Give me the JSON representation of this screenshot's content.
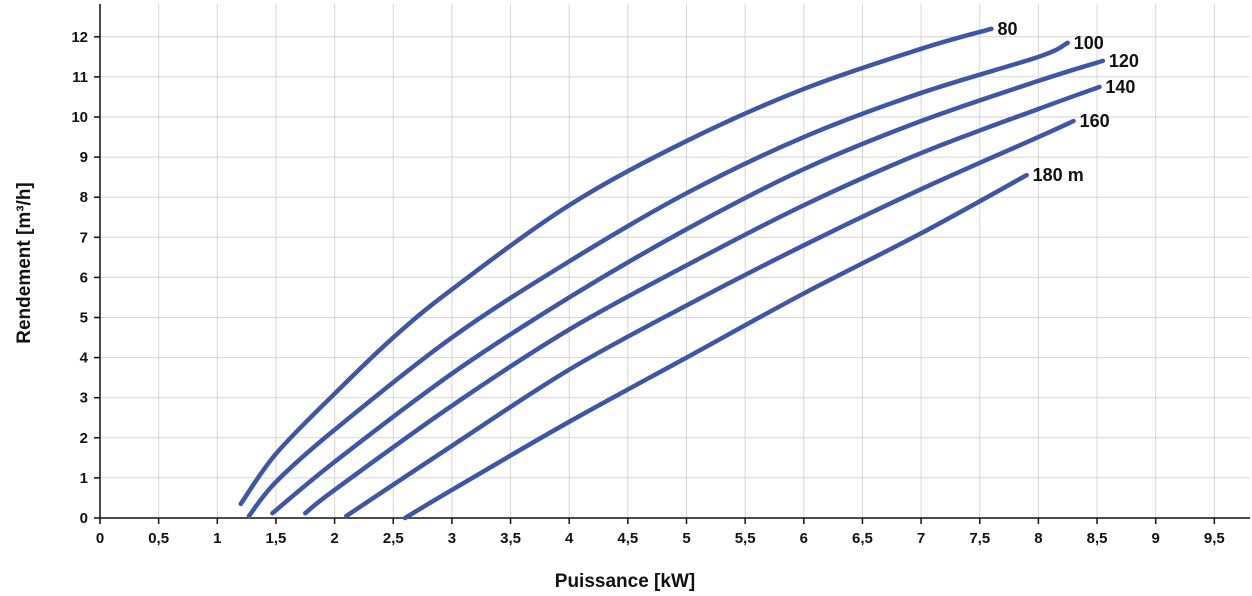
{
  "chart_data": {
    "type": "line",
    "title": "",
    "xlabel": "Puissance  [kW]",
    "ylabel": "Rendement [m³/h]",
    "xlim": [
      0,
      10
    ],
    "ylim": [
      0,
      12.5
    ],
    "x_ticks": [
      0,
      0.5,
      1,
      1.5,
      2,
      2.5,
      3,
      3.5,
      4,
      4.5,
      5,
      5.5,
      6,
      6.5,
      7,
      7.5,
      8,
      8.5,
      9,
      9.5
    ],
    "x_tick_labels": [
      "0",
      "0,5",
      "1",
      "1,5",
      "2",
      "2,5",
      "3",
      "3,5",
      "4",
      "4,5",
      "5",
      "5,5",
      "6",
      "6,5",
      "7",
      "7,5",
      "8",
      "8,5",
      "9",
      "9,5"
    ],
    "y_ticks": [
      0,
      1,
      2,
      3,
      4,
      5,
      6,
      7,
      8,
      9,
      10,
      11,
      12
    ],
    "y_tick_labels": [
      "0",
      "1",
      "2",
      "3",
      "4",
      "5",
      "6",
      "7",
      "8",
      "9",
      "10",
      "11",
      "12"
    ],
    "grid": true,
    "legend": "none",
    "series_color": "#3f56a6",
    "series": [
      {
        "name": "80",
        "x": [
          1.2,
          1.5,
          2.0,
          2.5,
          3.0,
          4.0,
          5.0,
          6.0,
          7.0,
          7.6
        ],
        "y": [
          0.35,
          1.6,
          3.1,
          4.5,
          5.7,
          7.8,
          9.4,
          10.7,
          11.7,
          12.2
        ]
      },
      {
        "name": "100",
        "x": [
          1.27,
          1.5,
          2.0,
          3.0,
          4.0,
          5.0,
          6.0,
          7.0,
          8.0,
          8.25
        ],
        "y": [
          0.05,
          0.9,
          2.2,
          4.5,
          6.4,
          8.1,
          9.5,
          10.6,
          11.5,
          11.85
        ]
      },
      {
        "name": "120",
        "x": [
          1.47,
          2.0,
          3.0,
          4.0,
          5.0,
          6.0,
          7.0,
          8.0,
          8.55
        ],
        "y": [
          0.12,
          1.4,
          3.6,
          5.5,
          7.2,
          8.7,
          9.9,
          10.9,
          11.4
        ]
      },
      {
        "name": "140",
        "x": [
          1.75,
          2.0,
          3.0,
          4.0,
          5.0,
          6.0,
          7.0,
          8.0,
          8.52
        ],
        "y": [
          0.12,
          0.7,
          2.8,
          4.7,
          6.3,
          7.8,
          9.1,
          10.2,
          10.75
        ]
      },
      {
        "name": "160",
        "x": [
          2.1,
          3.0,
          4.0,
          5.0,
          6.0,
          7.0,
          8.0,
          8.3
        ],
        "y": [
          0.05,
          1.8,
          3.7,
          5.3,
          6.8,
          8.2,
          9.5,
          9.9
        ]
      },
      {
        "name": "180 m",
        "x": [
          2.6,
          3.0,
          4.0,
          5.0,
          6.0,
          7.0,
          7.9
        ],
        "y": [
          0.0,
          0.7,
          2.4,
          4.0,
          5.6,
          7.1,
          8.55
        ]
      }
    ]
  }
}
